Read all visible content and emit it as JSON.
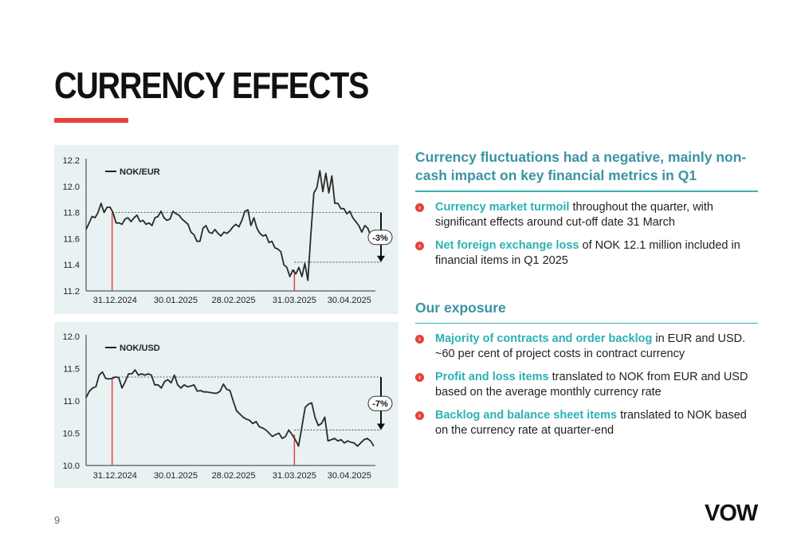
{
  "page": {
    "title": "CURRENCY EFFECTS",
    "page_number": "9",
    "logo": "VOW",
    "accent_color": "#e8413c",
    "teal_color": "#3b93a2"
  },
  "right": {
    "heading1": "Currency fluctuations had a negative, mainly non-cash impact on key financial metrics in Q1",
    "bullets1": [
      {
        "highlight": "Currency market turmoil",
        "text": " throughout the quarter, with significant effects around cut-off date 31 March"
      },
      {
        "highlight": "Net foreign exchange loss",
        "text": " of NOK 12.1 million included in financial items in Q1 2025"
      }
    ],
    "heading2": "Our exposure",
    "bullets2": [
      {
        "highlight": "Majority of contracts and order backlog",
        "text": " in EUR and USD. ~60 per cent of project costs in contract currency"
      },
      {
        "highlight": "Profit and loss items",
        "text": " translated to NOK from EUR and USD based on the average monthly currency rate"
      },
      {
        "highlight": "Backlog and balance sheet items",
        "text": " translated to NOK based on the currency rate at quarter-end"
      }
    ]
  },
  "chart_data": [
    {
      "type": "line",
      "series": [
        {
          "name": "NOK/EUR",
          "color": "#2a2a2a"
        }
      ],
      "x_tick_labels": [
        "31.12.2024",
        "30.01.2025",
        "28.02.2025",
        "31.03.2025",
        "30.04.2025"
      ],
      "ylim": [
        11.2,
        12.2
      ],
      "yticks": [
        "11.2",
        "11.4",
        "11.6",
        "11.8",
        "12.0",
        "12.2"
      ],
      "values": [
        11.67,
        11.72,
        11.77,
        11.76,
        11.8,
        11.87,
        11.8,
        11.84,
        11.84,
        11.8,
        11.72,
        11.72,
        11.71,
        11.75,
        11.76,
        11.73,
        11.76,
        11.78,
        11.73,
        11.74,
        11.71,
        11.72,
        11.7,
        11.76,
        11.77,
        11.81,
        11.76,
        11.74,
        11.75,
        11.81,
        11.79,
        11.78,
        11.75,
        11.73,
        11.71,
        11.65,
        11.63,
        11.58,
        11.58,
        11.68,
        11.7,
        11.65,
        11.64,
        11.67,
        11.64,
        11.62,
        11.65,
        11.64,
        11.66,
        11.69,
        11.71,
        11.69,
        11.74,
        11.81,
        11.82,
        11.7,
        11.76,
        11.68,
        11.64,
        11.62,
        11.63,
        11.57,
        11.58,
        11.53,
        11.52,
        11.5,
        11.4,
        11.38,
        11.31,
        11.36,
        11.33,
        11.38,
        11.31,
        11.41,
        11.28,
        11.63,
        11.95,
        11.99,
        12.12,
        11.96,
        12.1,
        11.95,
        12.08,
        11.87,
        11.87,
        11.83,
        11.83,
        11.79,
        11.81,
        11.76,
        11.73,
        11.7,
        11.65,
        11.7,
        11.68,
        11.62,
        11.6
      ],
      "dates_marked": [
        "31.12.2024",
        "31.03.2025"
      ],
      "reference_levels": [
        11.8,
        11.42
      ],
      "change_label": "-3%"
    },
    {
      "type": "line",
      "series": [
        {
          "name": "NOK/USD",
          "color": "#2a2a2a"
        }
      ],
      "x_tick_labels": [
        "31.12.2024",
        "30.01.2025",
        "28.02.2025",
        "31.03.2025",
        "30.04.2025"
      ],
      "ylim": [
        10.0,
        12.0
      ],
      "yticks": [
        "10.0",
        "10.5",
        "11.0",
        "11.5",
        "12.0"
      ],
      "values": [
        11.05,
        11.15,
        11.2,
        11.22,
        11.4,
        11.45,
        11.35,
        11.34,
        11.35,
        11.37,
        11.36,
        11.2,
        11.3,
        11.42,
        11.42,
        11.48,
        11.4,
        11.42,
        11.4,
        11.42,
        11.4,
        11.25,
        11.25,
        11.2,
        11.3,
        11.33,
        11.28,
        11.4,
        11.25,
        11.2,
        11.25,
        11.22,
        11.23,
        11.25,
        11.15,
        11.16,
        11.14,
        11.14,
        11.13,
        11.12,
        11.12,
        11.15,
        11.26,
        11.18,
        11.16,
        11.0,
        10.85,
        10.8,
        10.75,
        10.72,
        10.7,
        10.65,
        10.68,
        10.6,
        10.58,
        10.55,
        10.5,
        10.45,
        10.48,
        10.5,
        10.42,
        10.45,
        10.55,
        10.48,
        10.4,
        10.3,
        10.6,
        10.9,
        10.95,
        10.97,
        10.75,
        10.62,
        10.65,
        10.75,
        10.38,
        10.4,
        10.42,
        10.38,
        10.4,
        10.35,
        10.38,
        10.36,
        10.35,
        10.3,
        10.35,
        10.4,
        10.42,
        10.38,
        10.3
      ],
      "dates_marked": [
        "31.12.2024",
        "31.03.2025"
      ],
      "reference_levels": [
        11.37,
        10.55
      ],
      "change_label": "-7%"
    }
  ]
}
